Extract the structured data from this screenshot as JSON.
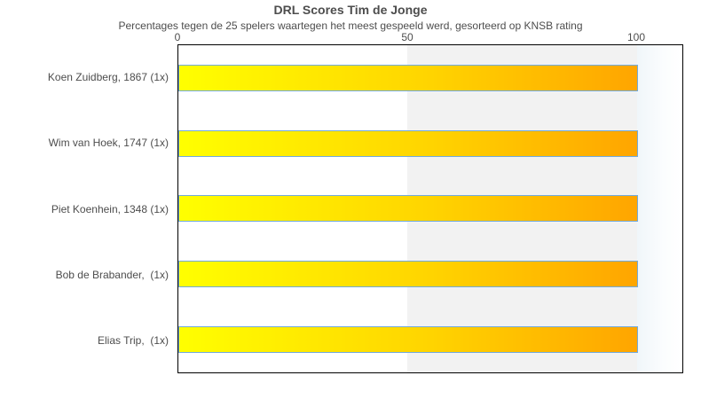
{
  "chart_data": {
    "type": "bar",
    "orientation": "horizontal",
    "title": "DRL Scores Tim de Jonge",
    "subtitle": "Percentages tegen de 25 spelers waartegen het meest gespeeld werd, gesorteerd op KNSB rating",
    "categories": [
      "Koen Zuidberg, 1867 (1x)",
      "Wim van Hoek, 1747 (1x)",
      "Piet Koenhein, 1348 (1x)",
      "Bob de Brabander,  (1x)",
      "Elias Trip,  (1x)"
    ],
    "values": [
      100,
      100,
      100,
      100,
      100
    ],
    "xlabel": "",
    "ylabel": "",
    "xticks": [
      "0",
      "50",
      "100"
    ],
    "xlim": [
      0,
      110
    ],
    "grid": "alternating vertical bands every 50 units",
    "legend": "none",
    "colors": {
      "bar_gradient_start": "#ffff00",
      "bar_gradient_end": "#ffa500",
      "bar_border": "#72aadc",
      "band_fill": "#f2f2f2",
      "plot_border": "#000000",
      "text": "#4d4d4d",
      "background": "#ffffff"
    }
  }
}
